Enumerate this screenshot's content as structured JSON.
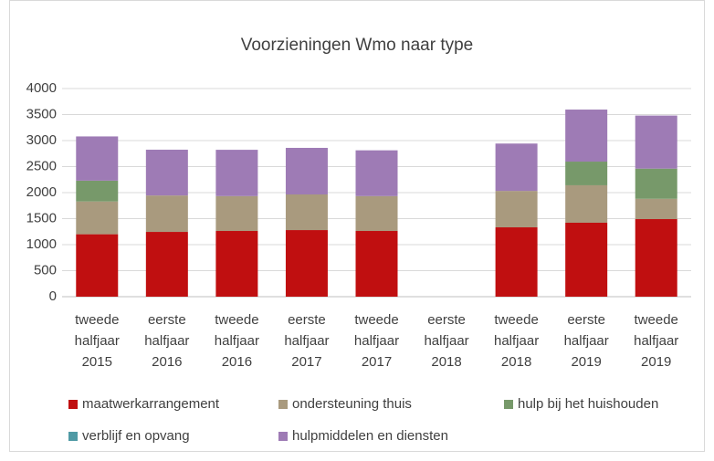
{
  "chart_data": {
    "type": "stacked_bar",
    "title": "Voorzieningen Wmo naar type",
    "categories": [
      "tweede halfjaar 2015",
      "eerste halfjaar 2016",
      "tweede halfjaar 2016",
      "eerste halfjaar 2017",
      "tweede halfjaar 2017",
      "eerste halfjaar 2018",
      "tweede halfjaar 2018",
      "eerste halfjaar 2019",
      "tweede halfjaar 2019"
    ],
    "series": [
      {
        "name": "maatwerkarrangement",
        "color": "#c00f10",
        "values": [
          1200,
          1245,
          1263,
          1280,
          1263,
          null,
          1333,
          1421,
          1491
        ]
      },
      {
        "name": "ondersteuning thuis",
        "color": "#a99a7e",
        "values": [
          630,
          700,
          670,
          685,
          670,
          null,
          700,
          720,
          390
        ]
      },
      {
        "name": "hulp bij het huishouden",
        "color": "#77996a",
        "values": [
          400,
          null,
          null,
          null,
          null,
          null,
          null,
          455,
          580
        ]
      },
      {
        "name": "verblijf en opvang",
        "color": "#4f9aa5",
        "values": [
          0,
          0,
          0,
          0,
          0,
          null,
          0,
          0,
          0
        ]
      },
      {
        "name": "hulpmiddelen en diensten",
        "color": "#9e7bb5",
        "values": [
          850,
          880,
          890,
          895,
          880,
          null,
          910,
          1000,
          1020
        ]
      }
    ],
    "ylim": [
      0,
      4000
    ],
    "yticks": [
      0,
      500,
      1000,
      1500,
      2000,
      2500,
      3000,
      3500,
      4000
    ],
    "grid": true
  }
}
